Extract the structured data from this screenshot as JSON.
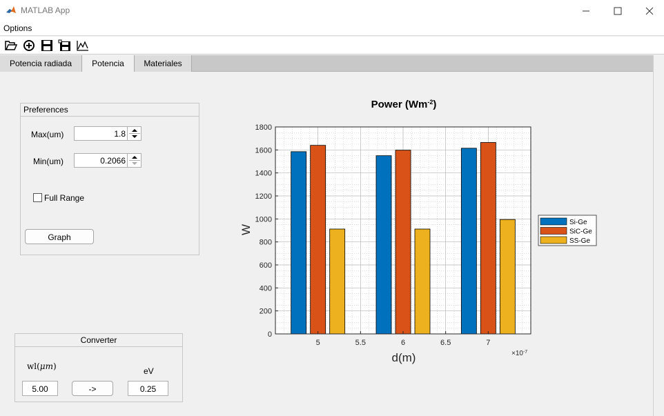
{
  "window": {
    "title": "MATLAB App"
  },
  "menubar": {
    "options_label": "Options"
  },
  "toolbar": {
    "icons": [
      "open-folder-icon",
      "add-circle-icon",
      "save-icon",
      "save-as-icon",
      "plot-icon"
    ]
  },
  "tabs": [
    {
      "label": "Potencia radiada",
      "active": false
    },
    {
      "label": "Potencia",
      "active": true
    },
    {
      "label": "Materiales",
      "active": false
    }
  ],
  "preferences": {
    "title": "Preferences",
    "max_label": "Max(um)",
    "max_value": "1.8",
    "min_label": "Min(um)",
    "min_value": "0.2066",
    "full_range_label": "Full Range",
    "full_range_checked": false,
    "graph_button": "Graph"
  },
  "converter": {
    "title": "Converter",
    "wl_label": "wl(",
    "wl_unit": "μm",
    "wl_close": ")",
    "ev_label": "eV",
    "wl_value": "5.00",
    "convert_button": "->",
    "ev_value": "0.25"
  },
  "chart_data": {
    "type": "bar",
    "title": "Power",
    "title_unit": "(Wm",
    "title_exp": "-2",
    "title_close": ")",
    "xlabel": "d(m)",
    "ylabel": "W",
    "x_multiplier": "×10",
    "x_multiplier_exp": "-7",
    "categories": [
      5,
      6,
      7
    ],
    "xlim": [
      4.5,
      7.5
    ],
    "ylim": [
      0,
      1800
    ],
    "xticks": [
      "5",
      "5.5",
      "6",
      "6.5",
      "7"
    ],
    "xtick_values": [
      5,
      5.5,
      6,
      6.5,
      7
    ],
    "yticks": [
      0,
      200,
      400,
      600,
      800,
      1000,
      1200,
      1400,
      1600,
      1800
    ],
    "grid": true,
    "minor_grid": true,
    "legend": "right",
    "series": [
      {
        "name": "Si-Ge",
        "color": "#0072bd",
        "values": [
          1585,
          1550,
          1615
        ]
      },
      {
        "name": "SiC-Ge",
        "color": "#d95319",
        "values": [
          1640,
          1598,
          1665
        ]
      },
      {
        "name": "SS-Ge",
        "color": "#edb120",
        "values": [
          912,
          912,
          995
        ]
      }
    ]
  }
}
